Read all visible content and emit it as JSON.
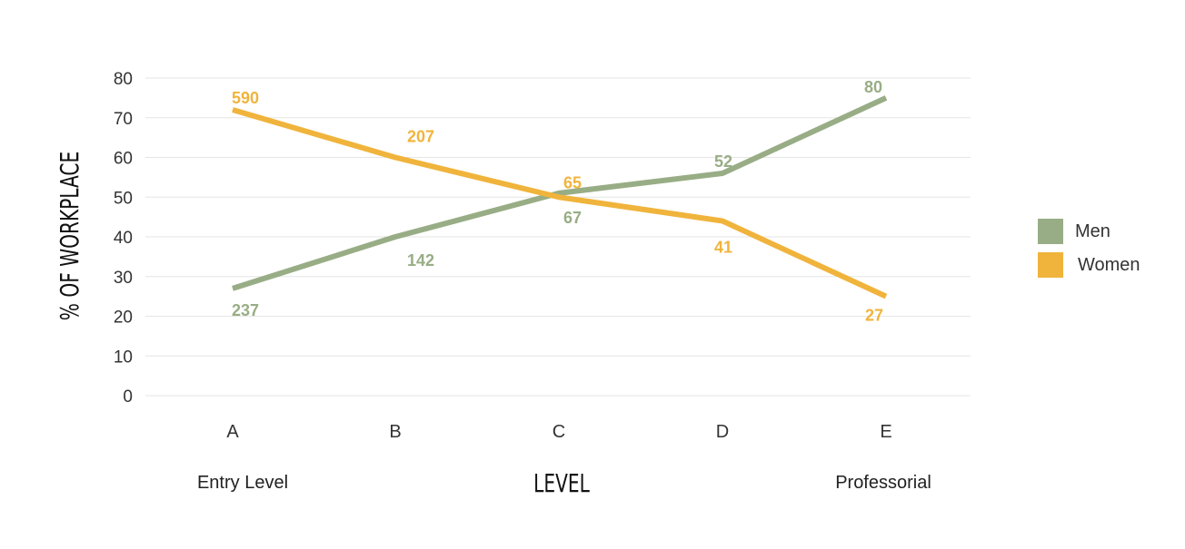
{
  "chart_data": {
    "type": "line",
    "title": "",
    "xlabel": "LEVEL",
    "ylabel": "% OF WORKPLACE",
    "categories": [
      "A",
      "B",
      "C",
      "D",
      "E"
    ],
    "category_sublabels": [
      {
        "category": "A",
        "text": "Entry Level"
      },
      {
        "category": "E",
        "text": "Professorial"
      }
    ],
    "ylim": [
      0,
      80
    ],
    "yticks": [
      "0",
      "10",
      "20",
      "30",
      "40",
      "50",
      "60",
      "70",
      "80"
    ],
    "grid": true,
    "legend": "right",
    "series": [
      {
        "name": "Men",
        "color": "#98ad85",
        "values": [
          27,
          40,
          51,
          56,
          75
        ],
        "labels": [
          "237",
          "142",
          "67",
          "52",
          "80"
        ]
      },
      {
        "name": "Women",
        "color": "#f0b43c",
        "values": [
          72,
          60,
          50,
          44,
          25
        ],
        "labels": [
          "590",
          "207",
          "65",
          "41",
          "27"
        ]
      }
    ]
  }
}
